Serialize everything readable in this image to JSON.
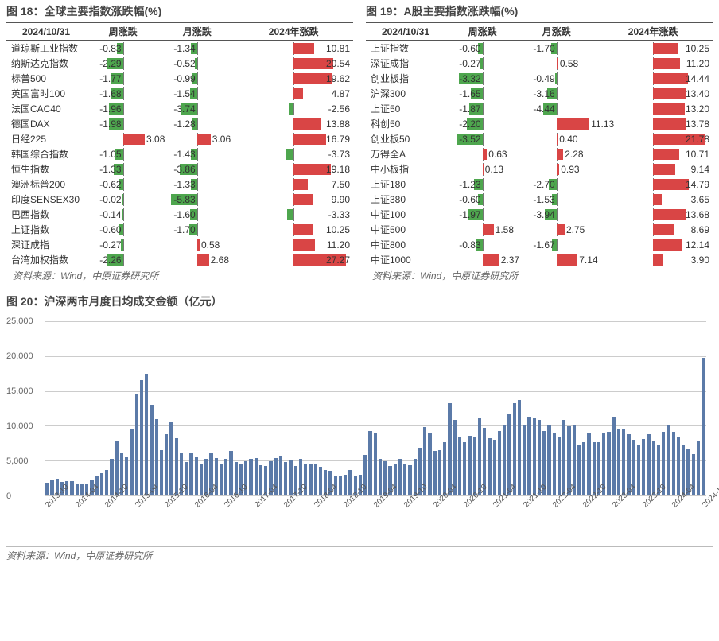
{
  "fig18": {
    "title": "图 18：全球主要指数涨跌幅(%)",
    "dateHeader": "2024/10/31",
    "cols": [
      "周涨跌",
      "月涨跌",
      "2024年涨跌"
    ],
    "source": "资料来源：Wind，中原证券研究所",
    "scales": [
      5,
      8,
      30
    ],
    "rows": [
      {
        "name": "道琼斯工业指数",
        "v": [
          -0.83,
          -1.34,
          10.81
        ]
      },
      {
        "name": "纳斯达克指数",
        "v": [
          -2.29,
          -0.52,
          20.54
        ]
      },
      {
        "name": "标普500",
        "v": [
          -1.77,
          -0.99,
          19.62
        ]
      },
      {
        "name": "英国富时100",
        "v": [
          -1.68,
          -1.54,
          4.87
        ]
      },
      {
        "name": "法国CAC40",
        "v": [
          -1.96,
          -3.74,
          -2.56
        ]
      },
      {
        "name": "德国DAX",
        "v": [
          -1.98,
          -1.28,
          13.88
        ]
      },
      {
        "name": "日经225",
        "v": [
          3.08,
          3.06,
          16.79
        ]
      },
      {
        "name": "韩国综合指数",
        "v": [
          -1.05,
          -1.43,
          -3.73
        ]
      },
      {
        "name": "恒生指数",
        "v": [
          -1.33,
          -3.86,
          19.18
        ]
      },
      {
        "name": "澳洲标普200",
        "v": [
          -0.62,
          -1.33,
          7.5
        ]
      },
      {
        "name": "印度SENSEX30",
        "v": [
          -0.02,
          -5.83,
          9.9
        ]
      },
      {
        "name": "巴西指数",
        "v": [
          -0.14,
          -1.6,
          -3.33
        ]
      },
      {
        "name": "上证指数",
        "v": [
          -0.6,
          -1.7,
          10.25
        ]
      },
      {
        "name": "深证成指",
        "v": [
          -0.27,
          0.58,
          11.2
        ]
      },
      {
        "name": "台湾加权指数",
        "v": [
          -2.26,
          2.68,
          27.27
        ]
      }
    ]
  },
  "fig19": {
    "title": "图 19：A股主要指数涨跌幅(%)",
    "dateHeader": "2024/10/31",
    "cols": [
      "周涨跌",
      "月涨跌",
      "2024年涨跌"
    ],
    "source": "资料来源：Wind，中原证券研究所",
    "scales": [
      5,
      12,
      24
    ],
    "rows": [
      {
        "name": "上证指数",
        "v": [
          -0.6,
          -1.7,
          10.25
        ]
      },
      {
        "name": "深证成指",
        "v": [
          -0.27,
          0.58,
          11.2
        ]
      },
      {
        "name": "创业板指",
        "v": [
          -3.32,
          -0.49,
          14.44
        ]
      },
      {
        "name": "沪深300",
        "v": [
          -1.65,
          -3.16,
          13.4
        ]
      },
      {
        "name": "上证50",
        "v": [
          -1.87,
          -4.44,
          13.2
        ]
      },
      {
        "name": "科创50",
        "v": [
          -2.2,
          11.13,
          13.78
        ]
      },
      {
        "name": "创业板50",
        "v": [
          -3.52,
          0.4,
          21.78
        ]
      },
      {
        "name": "万得全A",
        "v": [
          0.63,
          2.28,
          10.71
        ]
      },
      {
        "name": "中小板指",
        "v": [
          0.13,
          0.93,
          9.14
        ]
      },
      {
        "name": "上证180",
        "v": [
          -1.23,
          -2.7,
          14.79
        ]
      },
      {
        "name": "上证380",
        "v": [
          -0.6,
          -1.53,
          3.65
        ]
      },
      {
        "name": "中证100",
        "v": [
          -1.97,
          -3.94,
          13.68
        ]
      },
      {
        "name": "中证500",
        "v": [
          1.58,
          2.75,
          8.69
        ]
      },
      {
        "name": "中证800",
        "v": [
          -0.83,
          -1.67,
          12.14
        ]
      },
      {
        "name": "中证1000",
        "v": [
          2.37,
          7.14,
          3.9
        ]
      }
    ]
  },
  "fig20": {
    "title": "图 20：沪深两市月度日均成交金额（亿元）",
    "source": "资料来源：Wind，中原证券研究所",
    "ymax": 25000,
    "yticks": [
      0,
      5000,
      10000,
      15000,
      20000,
      25000
    ],
    "bar_color": "#5b7aa8",
    "grid_color": "#cccccc",
    "xlabels_every": 6,
    "data": [
      {
        "m": "2013-10",
        "v": 1800
      },
      {
        "m": "2013-11",
        "v": 2200
      },
      {
        "m": "2013-12",
        "v": 2400
      },
      {
        "m": "2014-01",
        "v": 1900
      },
      {
        "m": "2014-02",
        "v": 2100
      },
      {
        "m": "2014-03",
        "v": 2000
      },
      {
        "m": "2014-04",
        "v": 1700
      },
      {
        "m": "2014-05",
        "v": 1600
      },
      {
        "m": "2014-06",
        "v": 1700
      },
      {
        "m": "2014-07",
        "v": 2300
      },
      {
        "m": "2014-08",
        "v": 2800
      },
      {
        "m": "2014-09",
        "v": 3200
      },
      {
        "m": "2014-10",
        "v": 3600
      },
      {
        "m": "2014-11",
        "v": 5200
      },
      {
        "m": "2014-12",
        "v": 7800
      },
      {
        "m": "2015-01",
        "v": 6200
      },
      {
        "m": "2015-02",
        "v": 5500
      },
      {
        "m": "2015-03",
        "v": 9500
      },
      {
        "m": "2015-04",
        "v": 14500
      },
      {
        "m": "2015-05",
        "v": 16500
      },
      {
        "m": "2015-06",
        "v": 17500
      },
      {
        "m": "2015-07",
        "v": 13000
      },
      {
        "m": "2015-08",
        "v": 11000
      },
      {
        "m": "2015-09",
        "v": 6500
      },
      {
        "m": "2015-10",
        "v": 8800
      },
      {
        "m": "2015-11",
        "v": 10500
      },
      {
        "m": "2015-12",
        "v": 8200
      },
      {
        "m": "2016-01",
        "v": 6000
      },
      {
        "m": "2016-02",
        "v": 4800
      },
      {
        "m": "2016-03",
        "v": 6200
      },
      {
        "m": "2016-04",
        "v": 5500
      },
      {
        "m": "2016-05",
        "v": 4600
      },
      {
        "m": "2016-06",
        "v": 5200
      },
      {
        "m": "2016-07",
        "v": 6200
      },
      {
        "m": "2016-08",
        "v": 5400
      },
      {
        "m": "2016-09",
        "v": 4600
      },
      {
        "m": "2016-10",
        "v": 5200
      },
      {
        "m": "2016-11",
        "v": 6400
      },
      {
        "m": "2016-12",
        "v": 4800
      },
      {
        "m": "2017-01",
        "v": 4400
      },
      {
        "m": "2017-02",
        "v": 4900
      },
      {
        "m": "2017-03",
        "v": 5300
      },
      {
        "m": "2017-04",
        "v": 5400
      },
      {
        "m": "2017-05",
        "v": 4300
      },
      {
        "m": "2017-06",
        "v": 4200
      },
      {
        "m": "2017-07",
        "v": 4900
      },
      {
        "m": "2017-08",
        "v": 5400
      },
      {
        "m": "2017-09",
        "v": 5600
      },
      {
        "m": "2017-10",
        "v": 4800
      },
      {
        "m": "2017-11",
        "v": 5100
      },
      {
        "m": "2017-12",
        "v": 4200
      },
      {
        "m": "2018-01",
        "v": 5200
      },
      {
        "m": "2018-02",
        "v": 4400
      },
      {
        "m": "2018-03",
        "v": 4600
      },
      {
        "m": "2018-04",
        "v": 4400
      },
      {
        "m": "2018-05",
        "v": 4100
      },
      {
        "m": "2018-06",
        "v": 3700
      },
      {
        "m": "2018-07",
        "v": 3500
      },
      {
        "m": "2018-08",
        "v": 2900
      },
      {
        "m": "2018-09",
        "v": 2700
      },
      {
        "m": "2018-10",
        "v": 3000
      },
      {
        "m": "2018-11",
        "v": 3700
      },
      {
        "m": "2018-12",
        "v": 2700
      },
      {
        "m": "2019-01",
        "v": 3000
      },
      {
        "m": "2019-02",
        "v": 5800
      },
      {
        "m": "2019-03",
        "v": 9200
      },
      {
        "m": "2019-04",
        "v": 9000
      },
      {
        "m": "2019-05",
        "v": 5300
      },
      {
        "m": "2019-06",
        "v": 4900
      },
      {
        "m": "2019-07",
        "v": 4200
      },
      {
        "m": "2019-08",
        "v": 4400
      },
      {
        "m": "2019-09",
        "v": 5200
      },
      {
        "m": "2019-10",
        "v": 4400
      },
      {
        "m": "2019-11",
        "v": 4300
      },
      {
        "m": "2019-12",
        "v": 5200
      },
      {
        "m": "2020-01",
        "v": 6800
      },
      {
        "m": "2020-02",
        "v": 9800
      },
      {
        "m": "2020-03",
        "v": 8900
      },
      {
        "m": "2020-04",
        "v": 6400
      },
      {
        "m": "2020-05",
        "v": 6500
      },
      {
        "m": "2020-06",
        "v": 7600
      },
      {
        "m": "2020-07",
        "v": 13200
      },
      {
        "m": "2020-08",
        "v": 10800
      },
      {
        "m": "2020-09",
        "v": 8400
      },
      {
        "m": "2020-10",
        "v": 7600
      },
      {
        "m": "2020-11",
        "v": 8600
      },
      {
        "m": "2020-12",
        "v": 8400
      },
      {
        "m": "2021-01",
        "v": 11200
      },
      {
        "m": "2021-02",
        "v": 9700
      },
      {
        "m": "2021-03",
        "v": 8200
      },
      {
        "m": "2021-04",
        "v": 8000
      },
      {
        "m": "2021-05",
        "v": 9200
      },
      {
        "m": "2021-06",
        "v": 10200
      },
      {
        "m": "2021-07",
        "v": 11800
      },
      {
        "m": "2021-08",
        "v": 13200
      },
      {
        "m": "2021-09",
        "v": 13700
      },
      {
        "m": "2021-10",
        "v": 10200
      },
      {
        "m": "2021-11",
        "v": 11300
      },
      {
        "m": "2021-12",
        "v": 11200
      },
      {
        "m": "2022-01",
        "v": 10800
      },
      {
        "m": "2022-02",
        "v": 9200
      },
      {
        "m": "2022-03",
        "v": 10100
      },
      {
        "m": "2022-04",
        "v": 8900
      },
      {
        "m": "2022-05",
        "v": 8300
      },
      {
        "m": "2022-06",
        "v": 10800
      },
      {
        "m": "2022-07",
        "v": 9900
      },
      {
        "m": "2022-08",
        "v": 10000
      },
      {
        "m": "2022-09",
        "v": 7300
      },
      {
        "m": "2022-10",
        "v": 7700
      },
      {
        "m": "2022-11",
        "v": 9000
      },
      {
        "m": "2022-12",
        "v": 7700
      },
      {
        "m": "2023-01",
        "v": 7600
      },
      {
        "m": "2023-02",
        "v": 9000
      },
      {
        "m": "2023-03",
        "v": 9100
      },
      {
        "m": "2023-04",
        "v": 11300
      },
      {
        "m": "2023-05",
        "v": 9600
      },
      {
        "m": "2023-06",
        "v": 9600
      },
      {
        "m": "2023-07",
        "v": 8800
      },
      {
        "m": "2023-08",
        "v": 8000
      },
      {
        "m": "2023-09",
        "v": 7200
      },
      {
        "m": "2023-10",
        "v": 8100
      },
      {
        "m": "2023-11",
        "v": 8800
      },
      {
        "m": "2023-12",
        "v": 7800
      },
      {
        "m": "2024-01",
        "v": 7200
      },
      {
        "m": "2024-02",
        "v": 9100
      },
      {
        "m": "2024-03",
        "v": 10200
      },
      {
        "m": "2024-04",
        "v": 9100
      },
      {
        "m": "2024-05",
        "v": 8400
      },
      {
        "m": "2024-06",
        "v": 7300
      },
      {
        "m": "2024-07",
        "v": 6700
      },
      {
        "m": "2024-08",
        "v": 5900
      },
      {
        "m": "2024-09",
        "v": 7800
      },
      {
        "m": "2024-10",
        "v": 19800
      }
    ]
  },
  "colors": {
    "neg": "#4ea64e",
    "pos": "#d94545"
  }
}
